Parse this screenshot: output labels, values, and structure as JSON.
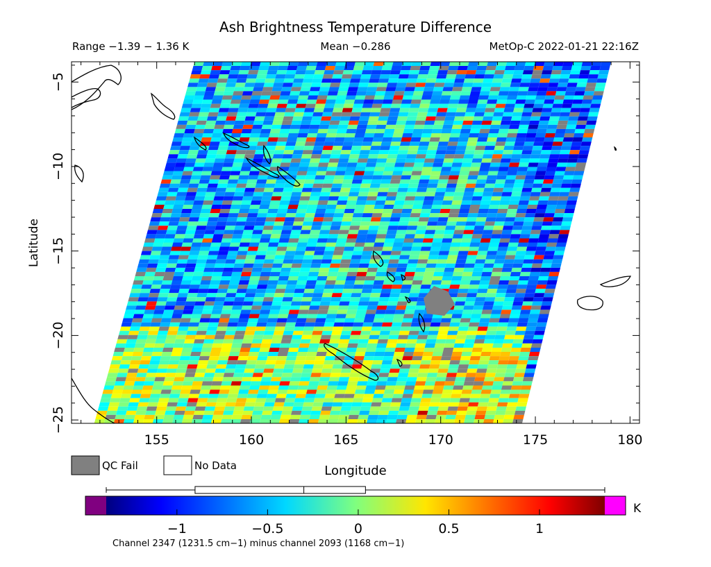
{
  "chart_data": {
    "type": "heatmap",
    "title": "Ash Brightness Temperature Difference",
    "range_label": "Range −1.39 − 1.36 K",
    "mean_label": "Mean −0.286",
    "source_label": "MetOp-C 2022-01-21 22:16Z",
    "xlabel": "Longitude",
    "ylabel": "Latitude",
    "xlim": [
      150.5,
      180.5
    ],
    "ylim": [
      -25.2,
      -3.8
    ],
    "x_ticks": [
      155,
      160,
      165,
      170,
      175,
      180
    ],
    "x_tick_labels": [
      "155",
      "160",
      "165",
      "170",
      "175",
      "180"
    ],
    "y_ticks": [
      -5,
      -10,
      -15,
      -20,
      -25
    ],
    "y_tick_labels": [
      "−5",
      "−10",
      "−15",
      "−20",
      "−25"
    ],
    "swath_corners": {
      "top_left": [
        157.0,
        -3.8
      ],
      "top_right": [
        179.0,
        -3.8
      ],
      "bottom_right": [
        174.3,
        -25.2
      ],
      "bottom_left": [
        151.7,
        -25.2
      ]
    },
    "qc_fail_label": "QC Fail",
    "no_data_label": "No Data",
    "colorbar": {
      "min": -1.39,
      "max": 1.36,
      "ticks": [
        -1,
        -0.5,
        0,
        0.5,
        1
      ],
      "tick_labels": [
        "−1",
        "−0.5",
        "0",
        "0.5",
        "1"
      ],
      "unit": "K",
      "low_color": "#800080",
      "high_color": "#ff00ff",
      "box": {
        "q1": -0.9,
        "median": -0.3,
        "q3": 0.04,
        "whisker_low": -1.39,
        "whisker_high": 1.36
      }
    },
    "channel_note": "Channel 2347 (1231.5 cm−1) minus channel 2093 (1168 cm−1)"
  }
}
